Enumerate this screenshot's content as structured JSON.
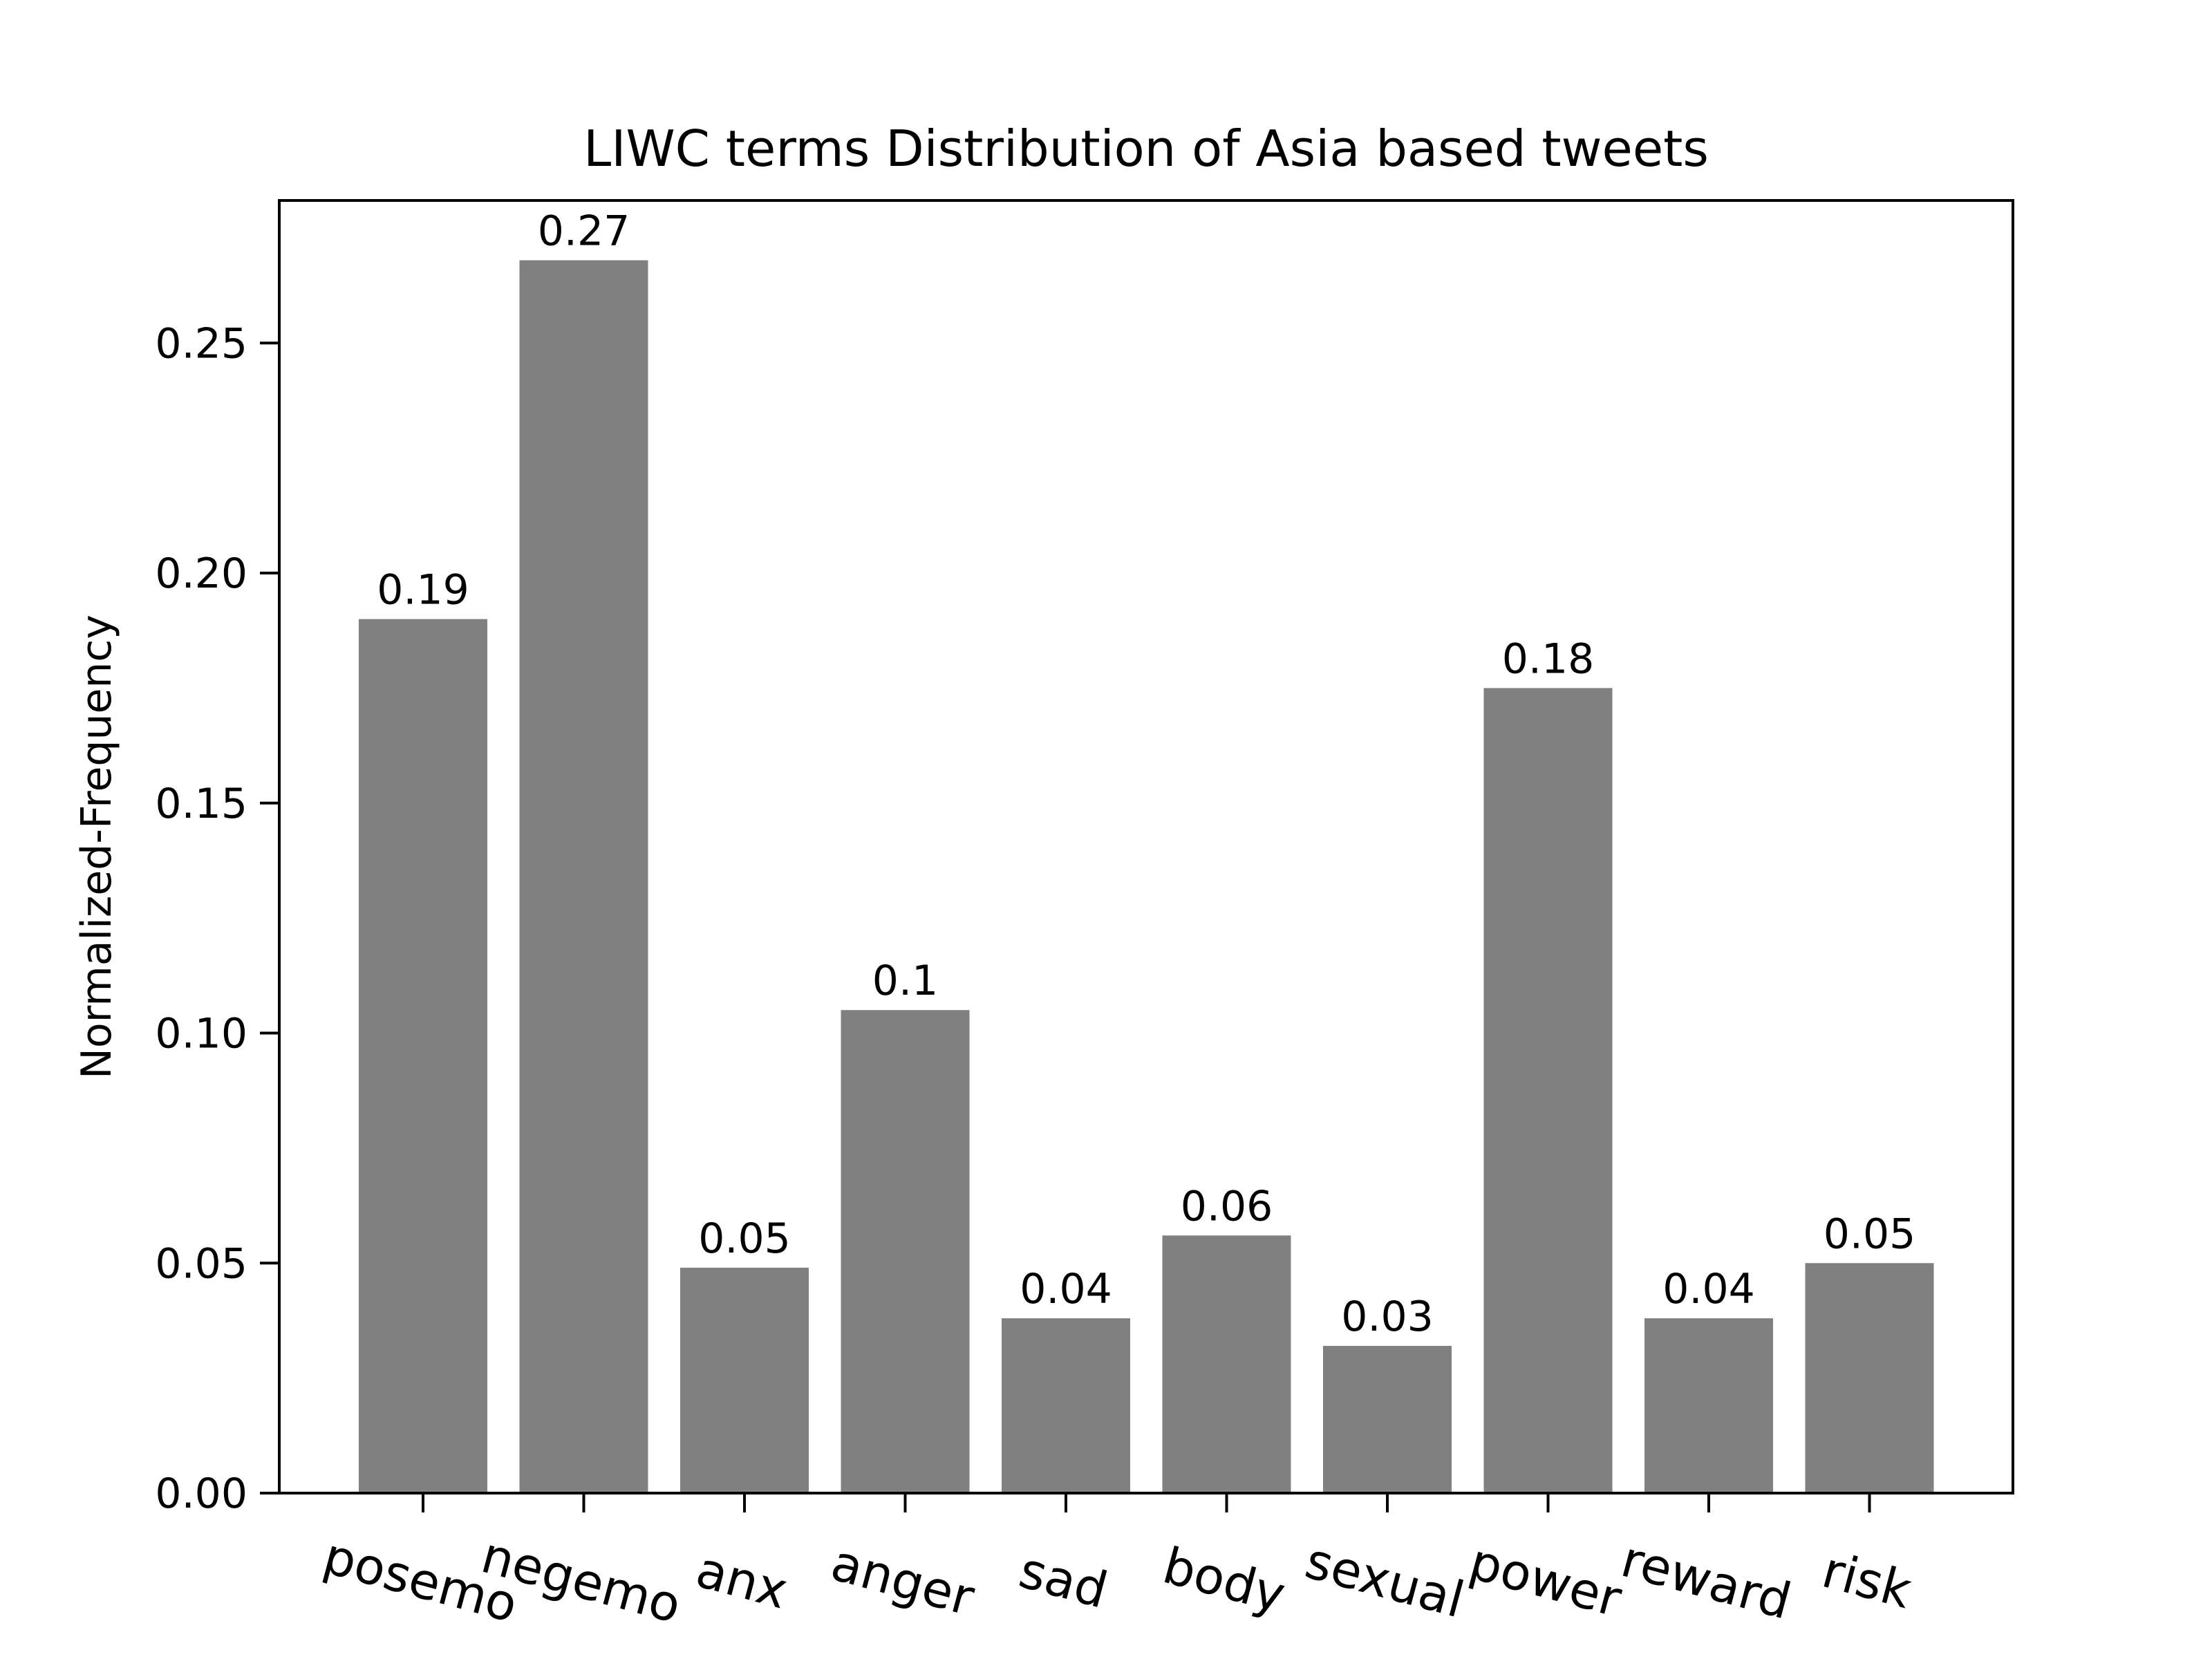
{
  "chart_data": {
    "type": "bar",
    "title": "LIWC terms Distribution of Asia based tweets",
    "xlabel": "",
    "ylabel": "Normalized-Frequency",
    "categories": [
      "posemo",
      "negemo",
      "anx",
      "anger",
      "sad",
      "body",
      "sexual",
      "power",
      "reward",
      "risk"
    ],
    "values": [
      0.19,
      0.268,
      0.049,
      0.105,
      0.038,
      0.056,
      0.032,
      0.175,
      0.038,
      0.05
    ],
    "data_labels": [
      "0.19",
      "0.27",
      "0.05",
      "0.1",
      "0.04",
      "0.06",
      "0.03",
      "0.18",
      "0.04",
      "0.05"
    ],
    "ylim": [
      0,
      0.281
    ],
    "yticks": [
      0.0,
      0.05,
      0.1,
      0.15,
      0.2,
      0.25
    ],
    "ytick_labels": [
      "0.00",
      "0.05",
      "0.10",
      "0.15",
      "0.20",
      "0.25"
    ],
    "bar_color": "#808080",
    "grid": false,
    "legend": false,
    "xtick_rotation_deg": 15
  }
}
